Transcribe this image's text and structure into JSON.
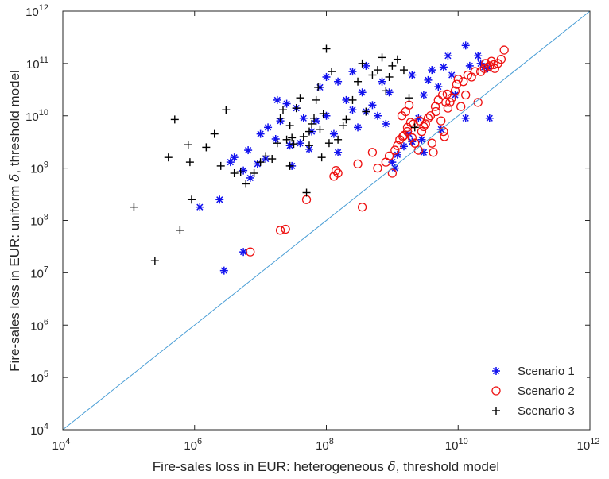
{
  "chart_data": {
    "type": "scatter",
    "xscale": "log",
    "yscale": "log",
    "xlim": [
      10000,
      1000000000000
    ],
    "ylim": [
      10000,
      1000000000000
    ],
    "xlabel_text": "Fire-sales loss in EUR: heterogeneous ",
    "xlabel_symbol": "δ",
    "xlabel_suffix": ", threshold model",
    "ylabel_text": "Fire-sales loss in EUR: uniform ",
    "ylabel_symbol": "δ",
    "ylabel_suffix": ", threshold model",
    "tick_exponents": [
      4,
      6,
      8,
      10,
      12
    ],
    "y_tick_exponents": [
      4,
      5,
      6,
      7,
      8,
      9,
      10,
      11,
      12
    ],
    "tick_base": "10",
    "grid": false,
    "legend_position": "bottom-right",
    "reference_line": {
      "type": "diagonal",
      "color": "#4a9ed6"
    },
    "series": [
      {
        "name": "Scenario 1",
        "marker": "asterisk",
        "color": "#1010ee",
        "points": [
          [
            1200000,
            180000000
          ],
          [
            2400000,
            250000000
          ],
          [
            2800000,
            11000000
          ],
          [
            5500000,
            25000000
          ],
          [
            3500000,
            1300000000
          ],
          [
            4000000,
            1600000000
          ],
          [
            5500000,
            900000000
          ],
          [
            7000000,
            650000000
          ],
          [
            9000000,
            1200000000
          ],
          [
            6500000,
            2200000000
          ],
          [
            12000000,
            1500000000
          ],
          [
            10000000,
            4500000000
          ],
          [
            17000000,
            3600000000
          ],
          [
            13000000,
            6000000000
          ],
          [
            20000000,
            8000000000
          ],
          [
            30000000,
            1100000000
          ],
          [
            28000000,
            2700000000
          ],
          [
            40000000,
            3000000000
          ],
          [
            18000000,
            20000000000
          ],
          [
            25000000,
            17000000000
          ],
          [
            35000000,
            14000000000
          ],
          [
            45000000,
            9000000000
          ],
          [
            60000000,
            5000000000
          ],
          [
            70000000,
            8000000000
          ],
          [
            55000000,
            2300000000
          ],
          [
            100000000,
            10000000000
          ],
          [
            130000000,
            4500000000
          ],
          [
            150000000,
            2000000000
          ],
          [
            200000000,
            20000000000
          ],
          [
            250000000,
            13000000000
          ],
          [
            300000000,
            6000000000
          ],
          [
            350000000,
            28000000000
          ],
          [
            400000000,
            12000000000
          ],
          [
            500000000,
            16000000000
          ],
          [
            600000000,
            10000000000
          ],
          [
            800000000,
            7000000000
          ],
          [
            1000000000,
            1300000000
          ],
          [
            1200000000,
            1800000000
          ],
          [
            1500000000,
            2600000000
          ],
          [
            2000000000,
            3200000000
          ],
          [
            2500000000,
            9000000000
          ],
          [
            3000000000,
            25000000000
          ],
          [
            3500000000,
            48000000000
          ],
          [
            4000000000,
            75000000000
          ],
          [
            5000000000,
            36000000000
          ],
          [
            6000000000,
            85000000000
          ],
          [
            7000000000,
            140000000000
          ],
          [
            8000000000,
            60000000000
          ],
          [
            9000000000,
            25000000000
          ],
          [
            3000000000,
            2000000000
          ],
          [
            2000000000,
            60000000000
          ],
          [
            900000000,
            28000000000
          ],
          [
            700000000,
            45000000000
          ],
          [
            400000000,
            90000000000
          ],
          [
            150000000,
            45000000000
          ],
          [
            250000000,
            70000000000
          ],
          [
            100000000,
            55000000000
          ],
          [
            80000000,
            35000000000
          ],
          [
            5500000000,
            5500000000
          ],
          [
            2800000000,
            3500000000
          ],
          [
            1800000000,
            4500000000
          ],
          [
            13000000000,
            9000000000
          ],
          [
            25000000000,
            85000000000
          ],
          [
            13000000000,
            220000000000
          ],
          [
            15000000000,
            90000000000
          ],
          [
            20000000000,
            140000000000
          ],
          [
            28000000000,
            80000000000
          ],
          [
            22000000000,
            100000000000
          ],
          [
            30000000000,
            9000000000
          ],
          [
            1100000000,
            1000000000
          ]
        ]
      },
      {
        "name": "Scenario 2",
        "marker": "circle",
        "color": "#ee1010",
        "points": [
          [
            7000000,
            25000000
          ],
          [
            20000000,
            65000000
          ],
          [
            24000000,
            68000000
          ],
          [
            50000000,
            250000000
          ],
          [
            130000000,
            700000000
          ],
          [
            140000000,
            900000000
          ],
          [
            150000000,
            800000000
          ],
          [
            300000000,
            1200000000
          ],
          [
            350000000,
            180000000
          ],
          [
            500000000,
            2000000000
          ],
          [
            600000000,
            1000000000
          ],
          [
            800000000,
            1300000000
          ],
          [
            900000000,
            1700000000
          ],
          [
            1000000000,
            800000000
          ],
          [
            1100000000,
            2200000000
          ],
          [
            1200000000,
            2700000000
          ],
          [
            1300000000,
            3500000000
          ],
          [
            1500000000,
            4200000000
          ],
          [
            1700000000,
            6000000000
          ],
          [
            1400000000,
            10000000000
          ],
          [
            1600000000,
            12000000000
          ],
          [
            1800000000,
            16000000000
          ],
          [
            1900000000,
            7500000000
          ],
          [
            2000000000,
            3800000000
          ],
          [
            2200000000,
            3000000000
          ],
          [
            2500000000,
            2200000000
          ],
          [
            2800000000,
            5000000000
          ],
          [
            3000000000,
            6200000000
          ],
          [
            3200000000,
            7000000000
          ],
          [
            3500000000,
            9000000000
          ],
          [
            4000000000,
            3000000000
          ],
          [
            4200000000,
            2000000000
          ],
          [
            4500000000,
            15000000000
          ],
          [
            5000000000,
            20000000000
          ],
          [
            5500000000,
            8000000000
          ],
          [
            6000000000,
            5000000000
          ],
          [
            6500000000,
            18000000000
          ],
          [
            7000000000,
            14000000000
          ],
          [
            8000000000,
            22000000000
          ],
          [
            9000000000,
            30000000000
          ],
          [
            10000000000,
            50000000000
          ],
          [
            11000000000,
            15000000000
          ],
          [
            12000000000,
            45000000000
          ],
          [
            14000000000,
            60000000000
          ],
          [
            16000000000,
            55000000000
          ],
          [
            18000000000,
            70000000000
          ],
          [
            20000000000,
            18000000000
          ],
          [
            22000000000,
            70000000000
          ],
          [
            25000000000,
            80000000000
          ],
          [
            28000000000,
            85000000000
          ],
          [
            30000000000,
            90000000000
          ],
          [
            32000000000,
            110000000000
          ],
          [
            35000000000,
            95000000000
          ],
          [
            40000000000,
            100000000000
          ],
          [
            45000000000,
            120000000000
          ],
          [
            50000000000,
            180000000000
          ],
          [
            9500000000,
            40000000000
          ],
          [
            13000000000,
            25000000000
          ],
          [
            26000000000,
            100000000000
          ],
          [
            36000000000,
            80000000000
          ],
          [
            5800000000,
            25000000000
          ],
          [
            2600000000,
            8000000000
          ],
          [
            2100000000,
            7000000000
          ],
          [
            3800000000,
            10000000000
          ],
          [
            4600000000,
            12000000000
          ],
          [
            7500000000,
            18000000000
          ],
          [
            1450000000,
            4000000000
          ],
          [
            1700000000,
            5000000000
          ],
          [
            6200000000,
            4000000000
          ],
          [
            6800000000,
            26000000000
          ]
        ]
      },
      {
        "name": "Scenario 3",
        "marker": "plus",
        "color": "#000000",
        "points": [
          [
            120000,
            180000000
          ],
          [
            250000,
            17000000
          ],
          [
            400000,
            1600000000
          ],
          [
            500000,
            8500000000
          ],
          [
            600000,
            65000000
          ],
          [
            800000,
            2800000000
          ],
          [
            850000,
            1300000000
          ],
          [
            900000,
            250000000
          ],
          [
            1500000,
            2500000000
          ],
          [
            2000000,
            4500000000
          ],
          [
            2200000000,
            6000000000
          ],
          [
            2500000,
            1100000000
          ],
          [
            3000000,
            13000000000
          ],
          [
            4000000,
            800000000
          ],
          [
            5000000,
            850000000
          ],
          [
            6000000,
            500000000
          ],
          [
            8000000,
            800000000
          ],
          [
            10000000,
            1300000000
          ],
          [
            12000000,
            1700000000
          ],
          [
            15000000,
            1500000000
          ],
          [
            18000000,
            3000000000
          ],
          [
            20000000,
            9000000000
          ],
          [
            22000000,
            13000000000
          ],
          [
            25000000,
            3500000000
          ],
          [
            28000000,
            6500000000
          ],
          [
            30000000,
            3800000000
          ],
          [
            35000000,
            14000000000
          ],
          [
            40000000,
            22000000000
          ],
          [
            45000000,
            4000000000
          ],
          [
            50000000,
            340000000
          ],
          [
            55000000,
            5000000000
          ],
          [
            60000000,
            7000000000
          ],
          [
            65000000,
            9000000000
          ],
          [
            70000000,
            20000000000
          ],
          [
            75000000,
            35000000000
          ],
          [
            80000000,
            5500000000
          ],
          [
            90000000,
            11000000000
          ],
          [
            100000000,
            190000000000
          ],
          [
            120000000,
            70000000000
          ],
          [
            150000000,
            3500000000
          ],
          [
            180000000,
            6500000000
          ],
          [
            200000000,
            8500000000
          ],
          [
            250000000,
            20000000000
          ],
          [
            300000000,
            45000000000
          ],
          [
            350000000,
            100000000000
          ],
          [
            400000000,
            12000000000
          ],
          [
            500000000,
            60000000000
          ],
          [
            600000000,
            75000000000
          ],
          [
            700000000,
            130000000000
          ],
          [
            800000000,
            30000000000
          ],
          [
            900000000,
            55000000000
          ],
          [
            1000000000,
            90000000000
          ],
          [
            1200000000,
            120000000000
          ],
          [
            1500000000,
            75000000000
          ],
          [
            1800000000,
            22000000000
          ],
          [
            28000000,
            1100000000
          ],
          [
            32000000,
            2900000000
          ],
          [
            55000000,
            2700000000
          ],
          [
            85000000,
            1600000000
          ],
          [
            110000000,
            3000000000
          ]
        ]
      }
    ]
  },
  "legend": {
    "scenario_1": "Scenario 1",
    "scenario_2": "Scenario 2",
    "scenario_3": "Scenario 3"
  }
}
